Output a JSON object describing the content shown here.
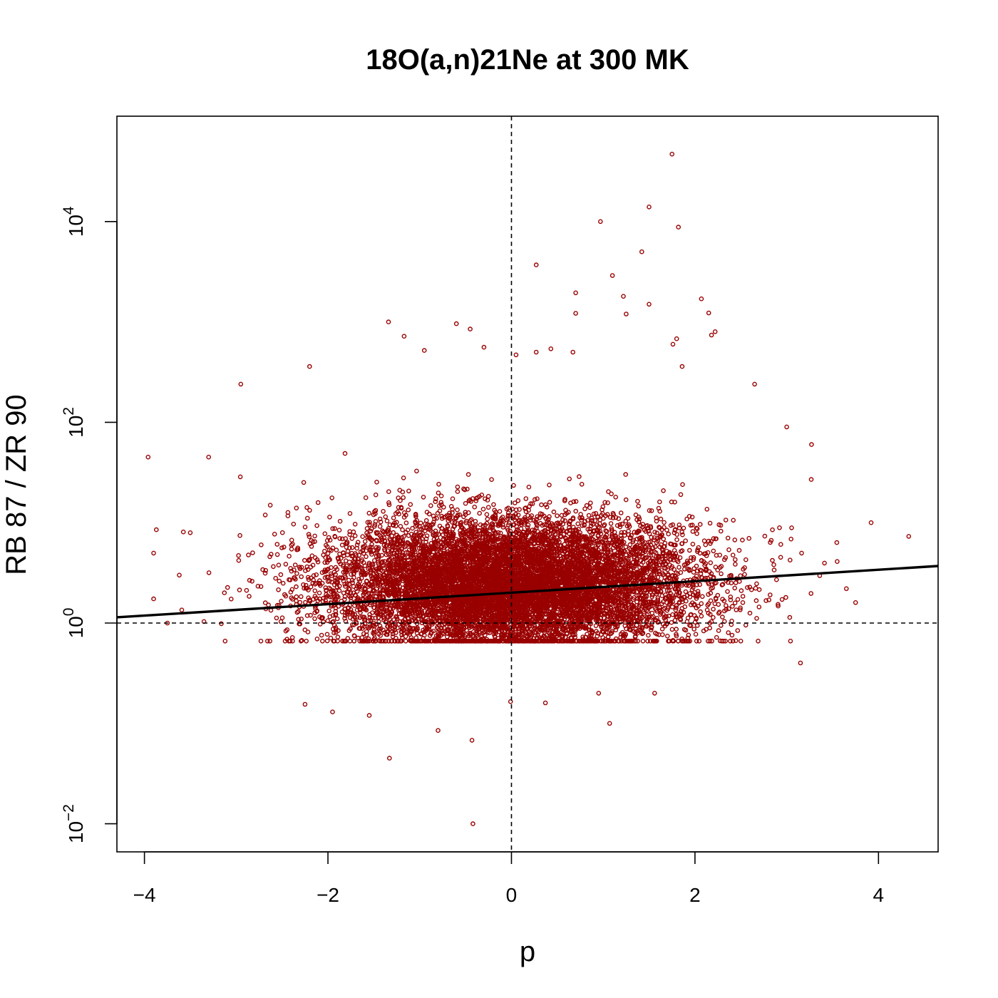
{
  "chart_data": {
    "type": "scatter",
    "title": "18O(a,n)21Ne at 300 MK",
    "xlabel": "p",
    "ylabel": "RB 87 / ZR 90",
    "xlim": [
      -4.3,
      4.65
    ],
    "ylim_log10": [
      -2.28,
      5.05
    ],
    "yscale": "log",
    "grid": false,
    "legend": "none",
    "x_ticks": [
      {
        "value": -4,
        "label": "−4"
      },
      {
        "value": -2,
        "label": "−2"
      },
      {
        "value": 0,
        "label": "0"
      },
      {
        "value": 2,
        "label": "2"
      },
      {
        "value": 4,
        "label": "4"
      }
    ],
    "y_ticks": [
      {
        "value": 0.01,
        "base": "10",
        "exponent": "−2"
      },
      {
        "value": 1,
        "base": "10",
        "exponent": "0"
      },
      {
        "value": 100,
        "base": "10",
        "exponent": "2"
      },
      {
        "value": 10000,
        "base": "10",
        "exponent": "4"
      }
    ],
    "reference_lines": {
      "vertical_x": 0,
      "horizontal_y": 1
    },
    "fit_line": {
      "x": [
        -4.3,
        4.65
      ],
      "y": [
        1.14,
        3.7
      ]
    },
    "point_color": "#990000",
    "line_color": "#000000",
    "distribution": {
      "n_points": 10000,
      "x_sd": 1.0,
      "log10y_mean": 0.38,
      "log10y_sd": 0.34
    },
    "outliers": [
      {
        "x": 1.75,
        "y": 47000
      },
      {
        "x": 1.5,
        "y": 14000
      },
      {
        "x": 0.97,
        "y": 10000
      },
      {
        "x": 1.82,
        "y": 8800
      },
      {
        "x": 1.42,
        "y": 5000
      },
      {
        "x": 0.27,
        "y": 3700
      },
      {
        "x": 1.1,
        "y": 2900
      },
      {
        "x": 0.7,
        "y": 1950
      },
      {
        "x": 1.22,
        "y": 1800
      },
      {
        "x": 2.07,
        "y": 1700
      },
      {
        "x": 1.5,
        "y": 1500
      },
      {
        "x": 0.7,
        "y": 1220
      },
      {
        "x": 1.25,
        "y": 1200
      },
      {
        "x": 2.15,
        "y": 1230
      },
      {
        "x": -1.34,
        "y": 1000
      },
      {
        "x": -0.6,
        "y": 960
      },
      {
        "x": -0.45,
        "y": 850
      },
      {
        "x": 2.22,
        "y": 800
      },
      {
        "x": 2.18,
        "y": 740
      },
      {
        "x": 1.8,
        "y": 680
      },
      {
        "x": 1.76,
        "y": 600
      },
      {
        "x": -1.17,
        "y": 720
      },
      {
        "x": -0.3,
        "y": 560
      },
      {
        "x": -0.95,
        "y": 520
      },
      {
        "x": 0.05,
        "y": 470
      },
      {
        "x": 0.27,
        "y": 500
      },
      {
        "x": 0.67,
        "y": 500
      },
      {
        "x": 0.43,
        "y": 540
      },
      {
        "x": -2.2,
        "y": 360
      },
      {
        "x": 1.86,
        "y": 360
      },
      {
        "x": -2.95,
        "y": 240
      },
      {
        "x": -3.96,
        "y": 45
      },
      {
        "x": -3.3,
        "y": 45
      },
      {
        "x": -3.87,
        "y": 8.5
      },
      {
        "x": 4.33,
        "y": 7.3
      },
      {
        "x": 3.92,
        "y": 10
      },
      {
        "x": 3.27,
        "y": 60
      },
      {
        "x": 3.0,
        "y": 90
      },
      {
        "x": 2.65,
        "y": 240
      },
      {
        "x": 3.55,
        "y": 4.1
      },
      {
        "x": 3.75,
        "y": 1.6
      },
      {
        "x": 3.65,
        "y": 2.2
      },
      {
        "x": -1.33,
        "y": 0.045
      },
      {
        "x": -0.42,
        "y": 0.01
      },
      {
        "x": -0.43,
        "y": 0.068
      },
      {
        "x": -0.8,
        "y": 0.085
      },
      {
        "x": -1.55,
        "y": 0.12
      },
      {
        "x": -1.95,
        "y": 0.13
      },
      {
        "x": 1.07,
        "y": 0.1
      },
      {
        "x": -0.01,
        "y": 0.165
      },
      {
        "x": 0.37,
        "y": 0.16
      },
      {
        "x": 1.56,
        "y": 0.2
      },
      {
        "x": -2.25,
        "y": 0.155
      },
      {
        "x": -3.75,
        "y": 1.0
      },
      {
        "x": -3.62,
        "y": 3.0
      },
      {
        "x": 3.15,
        "y": 0.4
      },
      {
        "x": 0.95,
        "y": 0.2
      }
    ]
  }
}
